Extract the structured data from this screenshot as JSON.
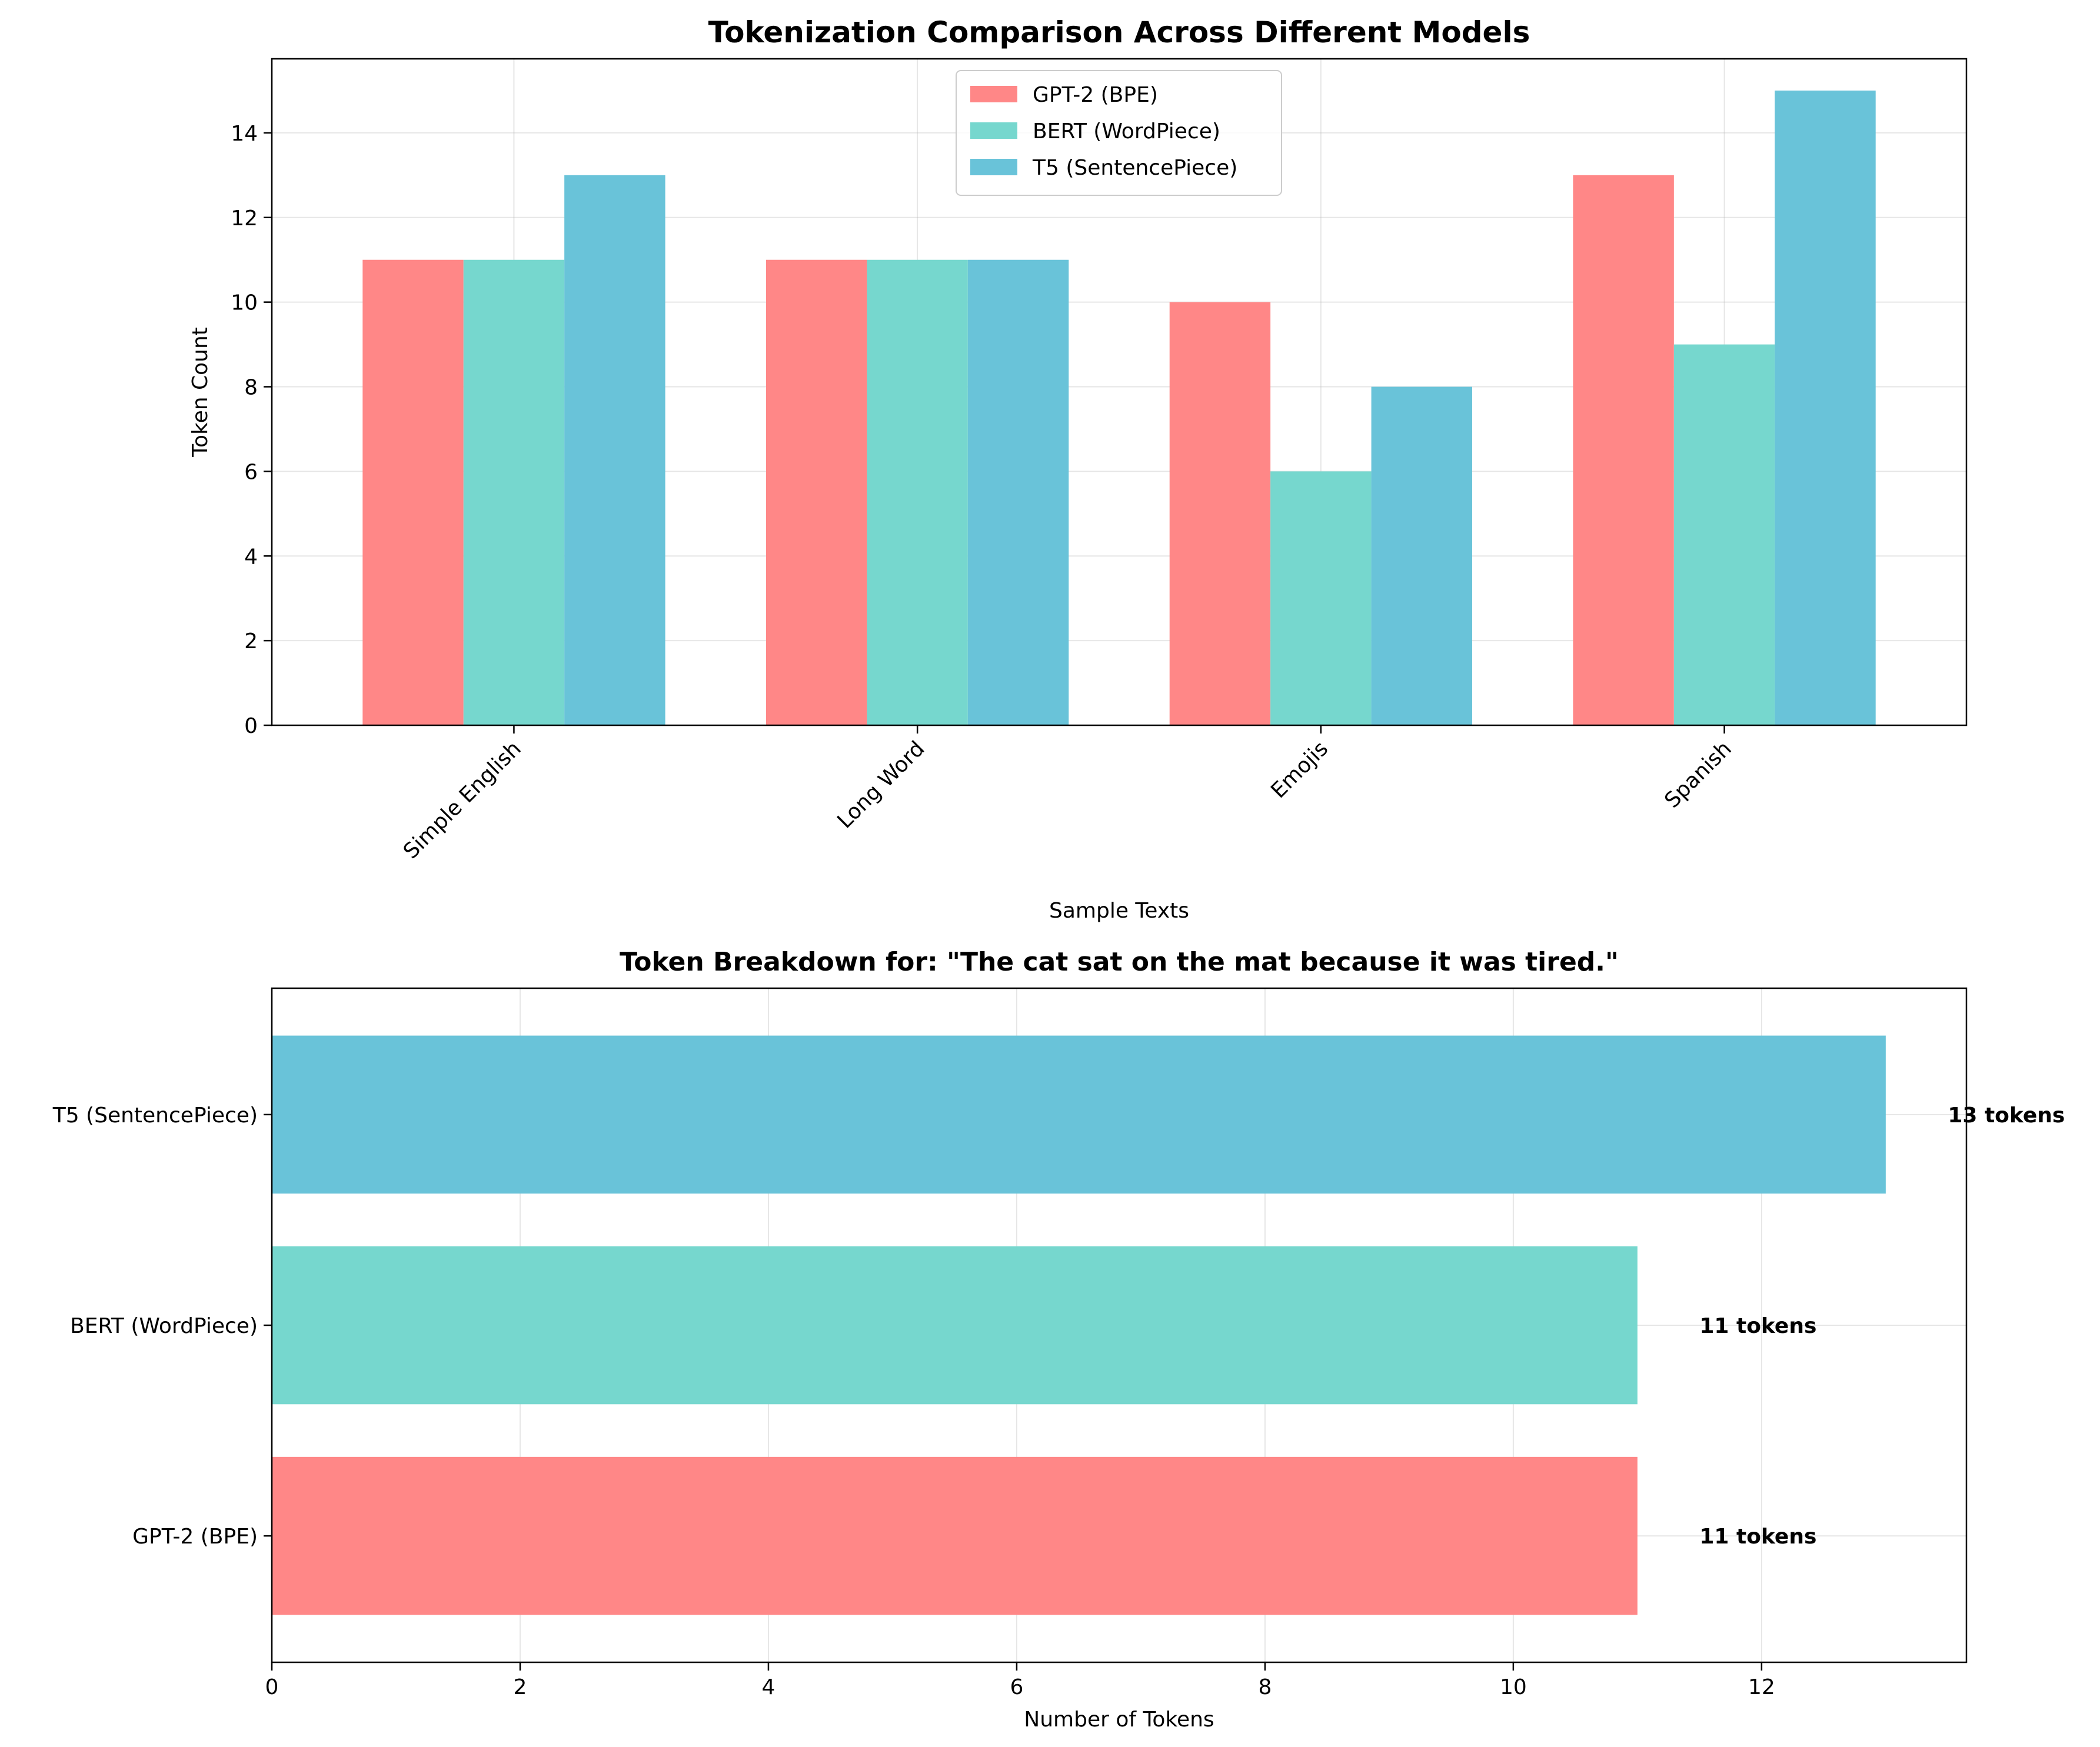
{
  "chart_data": [
    {
      "type": "bar",
      "title": "Tokenization Comparison Across Different Models",
      "xlabel": "Sample Texts",
      "ylabel": "Token Count",
      "categories": [
        "Simple English",
        "Long Word",
        "Emojis",
        "Spanish"
      ],
      "series": [
        {
          "name": "GPT-2 (BPE)",
          "color": "#ff8787",
          "values": [
            11,
            11,
            10,
            13
          ]
        },
        {
          "name": "BERT (WordPiece)",
          "color": "#76d7ce",
          "values": [
            11,
            11,
            6,
            9
          ]
        },
        {
          "name": "T5 (SentencePiece)",
          "color": "#69c3d9",
          "values": [
            13,
            11,
            8,
            15
          ]
        }
      ],
      "ylim": [
        0,
        15.75
      ],
      "yticks": [
        0,
        2,
        4,
        6,
        8,
        10,
        12,
        14
      ],
      "grid": true,
      "legend": "upper center"
    },
    {
      "type": "bar",
      "orientation": "horizontal",
      "title": "Token Breakdown for: \"The cat sat on the mat because it was tired.\"",
      "xlabel": "Number of Tokens",
      "ylabel": "",
      "categories": [
        "GPT-2 (BPE)",
        "BERT (WordPiece)",
        "T5 (SentencePiece)"
      ],
      "colors": [
        "#ff8787",
        "#76d7ce",
        "#69c3d9"
      ],
      "values": [
        11,
        11,
        13
      ],
      "data_labels": [
        "11 tokens",
        "11 tokens",
        "13 tokens"
      ],
      "xlim": [
        0,
        13.65
      ],
      "xticks": [
        0,
        2,
        4,
        6,
        8,
        10,
        12
      ],
      "grid": true
    }
  ]
}
